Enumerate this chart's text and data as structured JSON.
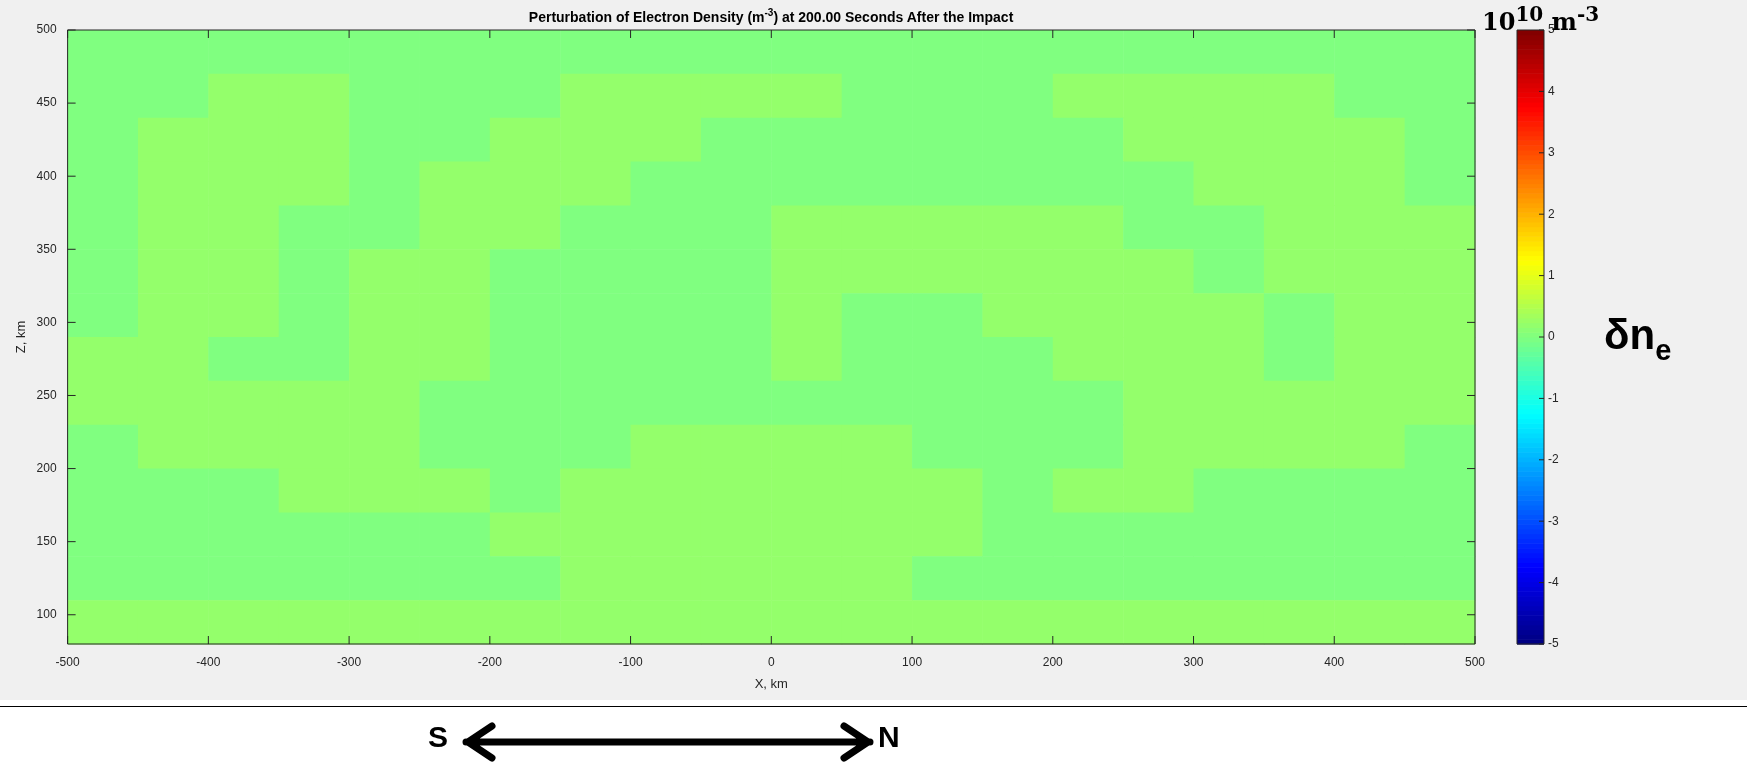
{
  "chart_data": {
    "type": "heatmap",
    "title": "Perturbation of Electron Density (m$^{-3}$) at 200.00 Seconds After the Impact",
    "xlabel": "X, km",
    "ylabel": "Z, km",
    "clabel": "δn$_{e}$",
    "annotations": [
      "10$^{10}$ m$^{-3}$",
      "S",
      "N"
    ],
    "xlim": [
      -500,
      500
    ],
    "ylim": [
      80,
      500
    ],
    "xticks": [
      -500,
      -400,
      -300,
      -200,
      -100,
      0,
      100,
      200,
      300,
      400,
      500
    ],
    "yticks": [
      100,
      150,
      200,
      250,
      300,
      350,
      400,
      450,
      500
    ],
    "clim": [
      -5,
      5
    ],
    "cticks": [
      -5,
      -4,
      -3,
      -2,
      -1,
      0,
      1,
      2,
      3,
      4,
      5
    ],
    "cells": [
      [
        0,
        0,
        0,
        0,
        0,
        0,
        0,
        0,
        0,
        0,
        0,
        0,
        0,
        0,
        0,
        0,
        0,
        0,
        0,
        0
      ],
      [
        0,
        0,
        0.2,
        0.2,
        0,
        0,
        0,
        0.2,
        0.2,
        0.2,
        0.2,
        0,
        0,
        0,
        0.2,
        0.2,
        0.2,
        0.2,
        0,
        0
      ],
      [
        0,
        0.2,
        0.2,
        0.2,
        0,
        0,
        0.2,
        0.2,
        0.2,
        0,
        0,
        0,
        0,
        0,
        0,
        0.2,
        0.2,
        0.2,
        0.2,
        0
      ],
      [
        0,
        0.2,
        0.2,
        0.2,
        0,
        0.2,
        0.2,
        0.2,
        0,
        0,
        0,
        0,
        0,
        0,
        0,
        0,
        0.2,
        0.2,
        0.2,
        0
      ],
      [
        0,
        0.2,
        0.2,
        0,
        0,
        0.2,
        0.2,
        0,
        0,
        0,
        0.2,
        0.2,
        0.2,
        0.2,
        0.2,
        0,
        0,
        0.2,
        0.2,
        0.2
      ],
      [
        0,
        0.2,
        0.2,
        0,
        0.2,
        0.2,
        0,
        0,
        0,
        0,
        0.2,
        0.2,
        0.2,
        0.2,
        0.2,
        0.2,
        0,
        0.2,
        0.2,
        0.2
      ],
      [
        0,
        0.2,
        0.2,
        0,
        0.2,
        0.2,
        0,
        0,
        0,
        0,
        0.2,
        0,
        0,
        0.2,
        0.2,
        0.2,
        0.2,
        0,
        0.2,
        0.2
      ],
      [
        0.2,
        0.2,
        0,
        0,
        0.2,
        0.2,
        0,
        0,
        0,
        0,
        0.2,
        0,
        0,
        0,
        0.2,
        0.2,
        0.2,
        0,
        0.2,
        0.2
      ],
      [
        0.2,
        0.2,
        0.2,
        0.2,
        0.2,
        0,
        0,
        0,
        0,
        0,
        0,
        0,
        0,
        0,
        0,
        0.2,
        0.2,
        0.2,
        0.2,
        0.2
      ],
      [
        0,
        0.2,
        0.2,
        0.2,
        0.2,
        0,
        0,
        0,
        0.2,
        0.2,
        0.2,
        0.2,
        0,
        0,
        0,
        0.2,
        0.2,
        0.2,
        0.2,
        0
      ],
      [
        0,
        0,
        0,
        0.2,
        0.2,
        0.2,
        0,
        0.2,
        0.2,
        0.2,
        0.2,
        0.2,
        0.2,
        0,
        0.2,
        0.2,
        0,
        0,
        0,
        0
      ],
      [
        0,
        0,
        0,
        0,
        0,
        0,
        0.2,
        0.2,
        0.2,
        0.2,
        0.2,
        0.2,
        0.2,
        0,
        0,
        0,
        0,
        0,
        0,
        0
      ],
      [
        0,
        0,
        0,
        0,
        0,
        0,
        0,
        0.2,
        0.2,
        0.2,
        0.2,
        0.2,
        0,
        0,
        0,
        0,
        0,
        0,
        0,
        0
      ],
      [
        0.2,
        0.2,
        0.2,
        0.2,
        0.2,
        0.2,
        0.2,
        0.2,
        0.2,
        0.2,
        0.2,
        0.2,
        0.2,
        0.2,
        0.2,
        0.2,
        0.2,
        0.2,
        0.2,
        0.2
      ]
    ]
  }
}
